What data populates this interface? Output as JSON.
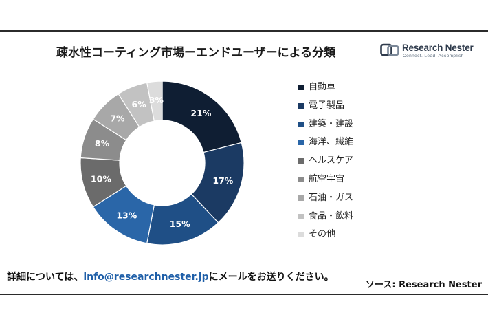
{
  "header": {
    "title": "疎水性コーティング市場ーエンドユーザーによる分類"
  },
  "logo": {
    "name": "Research Nester",
    "tagline": "Connect. Lead. Accomplish"
  },
  "chart_data": {
    "type": "pie",
    "variant": "donut",
    "title": "疎水性コーティング市場ーエンドユーザーによる分類",
    "categories": [
      "自動車",
      "電子製品",
      "建築・建設",
      "海洋、繊維",
      "ヘルスケア",
      "航空宇宙",
      "石油・ガス",
      "食品・飲料",
      "その他"
    ],
    "values": [
      21,
      17,
      15,
      13,
      10,
      8,
      7,
      6,
      3
    ],
    "value_labels": [
      "21%",
      "17%",
      "15%",
      "13%",
      "10%",
      "8%",
      "7%",
      "6%",
      "3%"
    ],
    "colors": [
      "#0f1e33",
      "#1b3a63",
      "#1f4f86",
      "#2a66a8",
      "#6b6b6b",
      "#8c8c8c",
      "#a8a8a8",
      "#c2c2c2",
      "#dcdcdc"
    ],
    "label_colors": [
      "#ffffff",
      "#ffffff",
      "#ffffff",
      "#ffffff",
      "#ffffff",
      "#ffffff",
      "#ffffff",
      "#ffffff",
      "#ffffff"
    ],
    "legend_position": "right",
    "start_angle_deg": 0,
    "direction": "clockwise"
  },
  "footer": {
    "note_prefix": "詳細については、",
    "email": "info@researchnester.jp",
    "note_suffix": "にメールをお送りください。",
    "source": "ソース: Research Nester"
  }
}
